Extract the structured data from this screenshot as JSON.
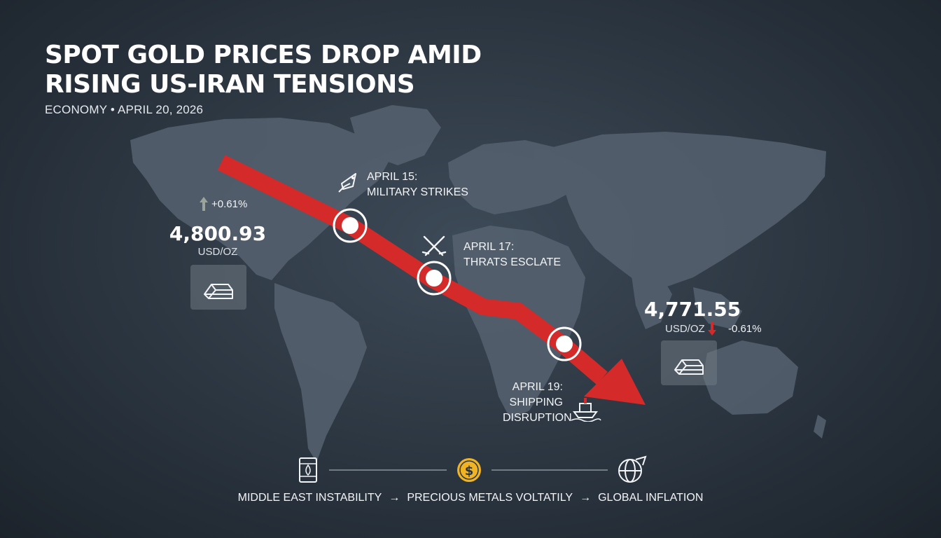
{
  "headline": {
    "line1": "SPOT GOLD PRICES DROP AMID",
    "line2": "RISING US-IRAN TENSIONS"
  },
  "meta": "ECONOMY • APRIL 20, 2026",
  "start": {
    "change": "+0.61%",
    "price": "4,800.93",
    "unit": "USD/OZ"
  },
  "end": {
    "price": "4,771.55",
    "unit": "USD/OZ",
    "change": "-0.61%"
  },
  "events": [
    {
      "date": "APRIL 15:",
      "text": "MILITARY STRIKES",
      "icon": "missile-icon"
    },
    {
      "date": "APRIL 17:",
      "text": "THRATS ESCLATE",
      "icon": "crossed-swords-icon"
    },
    {
      "date": "APRIL 19:",
      "text1": "SHIPPING",
      "text2": "DISRUPTION",
      "icon": "ship-icon"
    }
  ],
  "chain": {
    "item1": "MIDDLE EAST INSTABILITY",
    "item2": "PRECIOUS METALS VOLTATILY",
    "item3": "GLOBAL INFLATION",
    "arrow": "→",
    "icons": [
      "oil-barrel-icon",
      "dollar-coin-icon",
      "globe-icon"
    ]
  },
  "colors": {
    "trend": "#d42a2a",
    "background": "#2b3540",
    "land": "#5b6671",
    "coin": "#f0b323",
    "up_arrow": "#9aa39c",
    "down_arrow": "#d42a2a"
  }
}
